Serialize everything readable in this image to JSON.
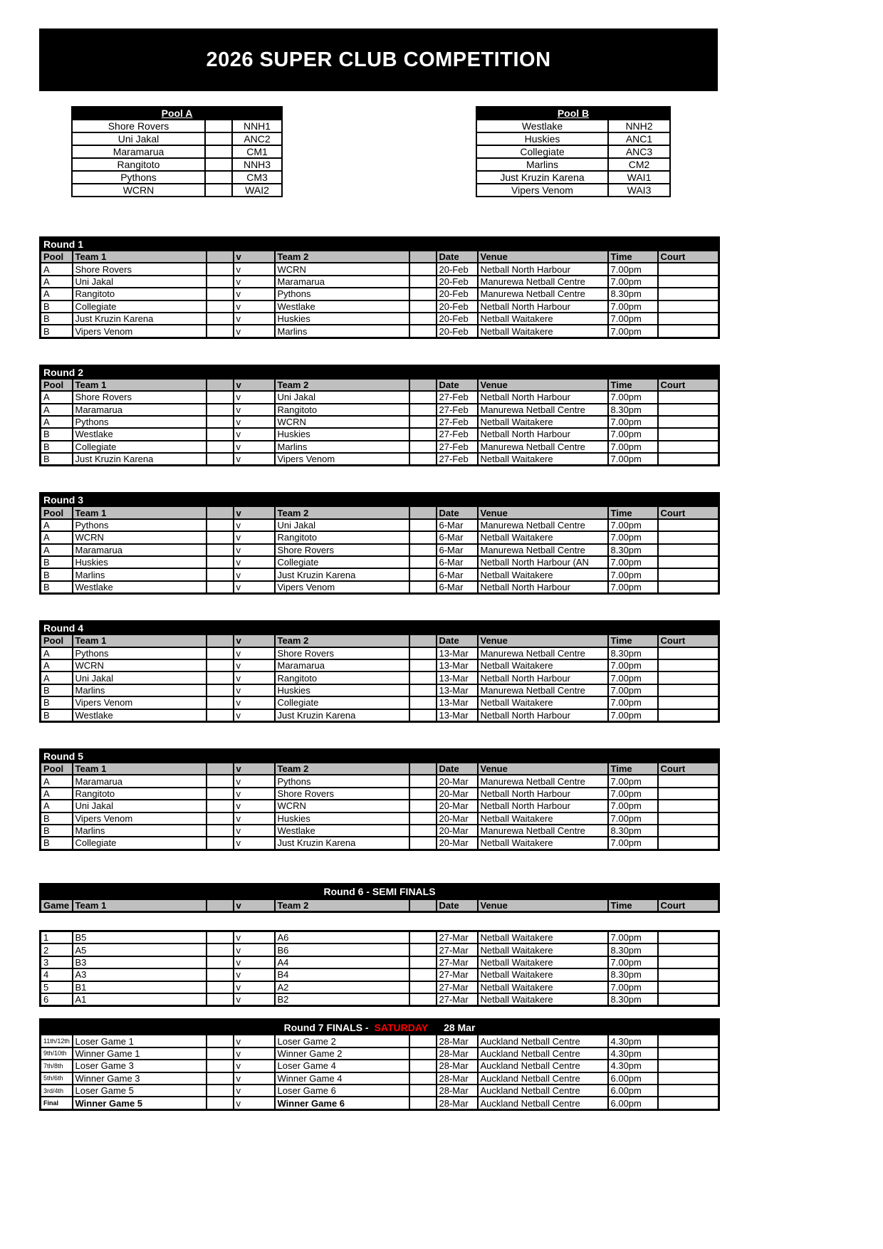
{
  "title": "2026 SUPER CLUB COMPETITION",
  "colors": {
    "black_bar": "#000000",
    "header_gray": "#bfbfbf",
    "saturday_red": "#ff0000"
  },
  "columns": {
    "pool": "Pool",
    "game": "Game",
    "team1": "Team 1",
    "v": "v",
    "team2": "Team 2",
    "date": "Date",
    "venue": "Venue",
    "time": "Time",
    "court": "Court"
  },
  "pools": {
    "a": {
      "label": "Pool A",
      "teams": [
        {
          "name": "Shore Rovers",
          "code": "NNH1"
        },
        {
          "name": "Uni Jakal",
          "code": "ANC2"
        },
        {
          "name": "Maramarua",
          "code": "CM1"
        },
        {
          "name": "Rangitoto",
          "code": "NNH3"
        },
        {
          "name": "Pythons",
          "code": "CM3"
        },
        {
          "name": "WCRN",
          "code": "WAI2"
        }
      ]
    },
    "b": {
      "label": "Pool B",
      "teams": [
        {
          "name": "Westlake",
          "code": "NNH2"
        },
        {
          "name": "Huskies",
          "code": "ANC1"
        },
        {
          "name": "Collegiate",
          "code": "ANC3"
        },
        {
          "name": "Marlins",
          "code": "CM2"
        },
        {
          "name": "Just Kruzin Karena",
          "code": "WAI1"
        },
        {
          "name": "Vipers Venom",
          "code": "WAI3"
        }
      ]
    }
  },
  "rounds": [
    {
      "title": "Round 1",
      "games": [
        {
          "pool": "A",
          "team1": "Shore Rovers",
          "team2": "WCRN",
          "date": "20-Feb",
          "venue": "Netball North Harbour",
          "time": "7.00pm",
          "court": ""
        },
        {
          "pool": "A",
          "team1": "Uni Jakal",
          "team2": "Maramarua",
          "date": "20-Feb",
          "venue": "Manurewa Netball Centre",
          "time": "7.00pm",
          "court": ""
        },
        {
          "pool": "A",
          "team1": "Rangitoto",
          "team2": "Pythons",
          "date": "20-Feb",
          "venue": "Manurewa Netball Centre",
          "time": "8.30pm",
          "court": ""
        },
        {
          "pool": "B",
          "team1": "Collegiate",
          "team2": "Westlake",
          "date": "20-Feb",
          "venue": "Netball North Harbour",
          "time": "7.00pm",
          "court": ""
        },
        {
          "pool": "B",
          "team1": "Just Kruzin Karena",
          "team2": "Huskies",
          "date": "20-Feb",
          "venue": "Netball Waitakere",
          "time": "7.00pm",
          "court": ""
        },
        {
          "pool": "B",
          "team1": "Vipers Venom",
          "team2": "Marlins",
          "date": "20-Feb",
          "venue": "Netball Waitakere",
          "time": "7.00pm",
          "court": ""
        }
      ]
    },
    {
      "title": "Round 2",
      "games": [
        {
          "pool": "A",
          "team1": "Shore Rovers",
          "team2": "Uni Jakal",
          "date": "27-Feb",
          "venue": "Netball North Harbour",
          "time": "7.00pm",
          "court": ""
        },
        {
          "pool": "A",
          "team1": "Maramarua",
          "team2": "Rangitoto",
          "date": "27-Feb",
          "venue": "Manurewa Netball Centre",
          "time": "8.30pm",
          "court": ""
        },
        {
          "pool": "A",
          "team1": "Pythons",
          "team2": "WCRN",
          "date": "27-Feb",
          "venue": "Netball Waitakere",
          "time": "7.00pm",
          "court": ""
        },
        {
          "pool": "B",
          "team1": "Westlake",
          "team2": "Huskies",
          "date": "27-Feb",
          "venue": "Netball North Harbour",
          "time": "7.00pm",
          "court": ""
        },
        {
          "pool": "B",
          "team1": "Collegiate",
          "team2": "Marlins",
          "date": "27-Feb",
          "venue": "Manurewa Netball Centre",
          "time": "7.00pm",
          "court": ""
        },
        {
          "pool": "B",
          "team1": "Just Kruzin Karena",
          "team2": "Vipers Venom",
          "date": "27-Feb",
          "venue": "Netball Waitakere",
          "time": "7.00pm",
          "court": ""
        }
      ]
    },
    {
      "title": "Round 3",
      "games": [
        {
          "pool": "A",
          "team1": "Pythons",
          "team2": "Uni Jakal",
          "date": "6-Mar",
          "venue": "Manurewa Netball Centre",
          "time": "7.00pm",
          "court": ""
        },
        {
          "pool": "A",
          "team1": "WCRN",
          "team2": "Rangitoto",
          "date": "6-Mar",
          "venue": "Netball Waitakere",
          "time": "7.00pm",
          "court": ""
        },
        {
          "pool": "A",
          "team1": "Maramarua",
          "team2": "Shore Rovers",
          "date": "6-Mar",
          "venue": "Manurewa Netball Centre",
          "time": "8.30pm",
          "court": ""
        },
        {
          "pool": "B",
          "team1": "Huskies",
          "team2": "Collegiate",
          "date": "6-Mar",
          "venue": "Netball North Harbour (AN",
          "time": "7.00pm",
          "court": ""
        },
        {
          "pool": "B",
          "team1": "Marlins",
          "team2": "Just Kruzin Karena",
          "date": "6-Mar",
          "venue": "Netball Waitakere",
          "time": "7.00pm",
          "court": ""
        },
        {
          "pool": "B",
          "team1": "Westlake",
          "team2": "Vipers Venom",
          "date": "6-Mar",
          "venue": "Netball North Harbour",
          "time": "7.00pm",
          "court": ""
        }
      ]
    },
    {
      "title": "Round 4",
      "games": [
        {
          "pool": "A",
          "team1": "Pythons",
          "team2": "Shore Rovers",
          "date": "13-Mar",
          "venue": "Manurewa Netball Centre",
          "time": "8.30pm",
          "court": ""
        },
        {
          "pool": "A",
          "team1": "WCRN",
          "team2": "Maramarua",
          "date": "13-Mar",
          "venue": "Netball Waitakere",
          "time": "7.00pm",
          "court": ""
        },
        {
          "pool": "A",
          "team1": "Uni Jakal",
          "team2": "Rangitoto",
          "date": "13-Mar",
          "venue": "Netball North Harbour",
          "time": "7.00pm",
          "court": ""
        },
        {
          "pool": "B",
          "team1": "Marlins",
          "team2": "Huskies",
          "date": "13-Mar",
          "venue": "Manurewa Netball Centre",
          "time": "7.00pm",
          "court": ""
        },
        {
          "pool": "B",
          "team1": "Vipers Venom",
          "team2": "Collegiate",
          "date": "13-Mar",
          "venue": "Netball Waitakere",
          "time": "7.00pm",
          "court": ""
        },
        {
          "pool": "B",
          "team1": "Westlake",
          "team2": "Just Kruzin Karena",
          "date": "13-Mar",
          "venue": "Netball North Harbour",
          "time": "7.00pm",
          "court": ""
        }
      ]
    },
    {
      "title": "Round 5",
      "games": [
        {
          "pool": "A",
          "team1": "Maramarua",
          "team2": "Pythons",
          "date": "20-Mar",
          "venue": "Manurewa Netball Centre",
          "time": "7.00pm",
          "court": ""
        },
        {
          "pool": "A",
          "team1": "Rangitoto",
          "team2": "Shore Rovers",
          "date": "20-Mar",
          "venue": "Netball North Harbour",
          "time": "7.00pm",
          "court": ""
        },
        {
          "pool": "A",
          "team1": "Uni Jakal",
          "team2": "WCRN",
          "date": "20-Mar",
          "venue": "Netball North Harbour",
          "time": "7.00pm",
          "court": ""
        },
        {
          "pool": "B",
          "team1": "Vipers Venom",
          "team2": "Huskies",
          "date": "20-Mar",
          "venue": "Netball Waitakere",
          "time": "7.00pm",
          "court": ""
        },
        {
          "pool": "B",
          "team1": "Marlins",
          "team2": "Westlake",
          "date": "20-Mar",
          "venue": "Manurewa Netball Centre",
          "time": "8.30pm",
          "court": ""
        },
        {
          "pool": "B",
          "team1": "Collegiate",
          "team2": "Just Kruzin Karena",
          "date": "20-Mar",
          "venue": "Netball Waitakere",
          "time": "7.00pm",
          "court": ""
        }
      ]
    }
  ],
  "semi_finals": {
    "title": "Round 6 - SEMI FINALS",
    "games": [
      {
        "game": "1",
        "team1": "B5",
        "team2": "A6",
        "date": "27-Mar",
        "venue": "Netball Waitakere",
        "time": "7.00pm",
        "court": ""
      },
      {
        "game": "2",
        "team1": "A5",
        "team2": "B6",
        "date": "27-Mar",
        "venue": "Netball Waitakere",
        "time": "8.30pm",
        "court": ""
      },
      {
        "game": "3",
        "team1": "B3",
        "team2": "A4",
        "date": "27-Mar",
        "venue": "Netball Waitakere",
        "time": "7.00pm",
        "court": ""
      },
      {
        "game": "4",
        "team1": "A3",
        "team2": "B4",
        "date": "27-Mar",
        "venue": "Netball Waitakere",
        "time": "8.30pm",
        "court": ""
      },
      {
        "game": "5",
        "team1": "B1",
        "team2": "A2",
        "date": "27-Mar",
        "venue": "Netball Waitakere",
        "time": "7.00pm",
        "court": ""
      },
      {
        "game": "6",
        "team1": "A1",
        "team2": "B2",
        "date": "27-Mar",
        "venue": "Netball Waitakere",
        "time": "8.30pm",
        "court": ""
      }
    ]
  },
  "finals": {
    "title_prefix": "Round 7 FINALS -",
    "title_highlight": "SATURDAY",
    "title_date": "28 Mar",
    "games": [
      {
        "label": "11th/12th",
        "team1": "Loser Game 1",
        "team2": "Loser Game 2",
        "date": "28-Mar",
        "venue": "Auckland Netball Centre",
        "time": "4.30pm",
        "court": "",
        "bold": false
      },
      {
        "label": "9th/10th",
        "team1": "Winner Game 1",
        "team2": "Winner Game 2",
        "date": "28-Mar",
        "venue": "Auckland Netball Centre",
        "time": "4.30pm",
        "court": "",
        "bold": false
      },
      {
        "label": "7th/8th",
        "team1": "Loser Game 3",
        "team2": "Loser Game 4",
        "date": "28-Mar",
        "venue": "Auckland Netball Centre",
        "time": "4.30pm",
        "court": "",
        "bold": false
      },
      {
        "label": "5th/6th",
        "team1": "Winner Game 3",
        "team2": "Winner Game 4",
        "date": "28-Mar",
        "venue": "Auckland Netball Centre",
        "time": "6.00pm",
        "court": "",
        "bold": false
      },
      {
        "label": "3rd/4th",
        "team1": "Loser Game 5",
        "team2": "Loser Game 6",
        "date": "28-Mar",
        "venue": "Auckland Netball Centre",
        "time": "6.00pm",
        "court": "",
        "bold": false
      },
      {
        "label": "Final",
        "team1": "Winner Game 5",
        "team2": "Winner Game 6",
        "date": "28-Mar",
        "venue": "Auckland Netball Centre",
        "time": "6.00pm",
        "court": "",
        "bold": true
      }
    ]
  }
}
